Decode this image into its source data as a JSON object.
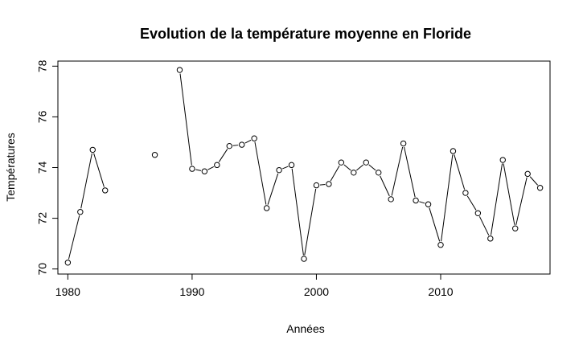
{
  "chart_data": {
    "type": "line",
    "title": "Evolution de la température moyenne en Floride",
    "xlabel": "Années",
    "ylabel": "Températures",
    "xlim": [
      1979.2,
      2018.8
    ],
    "ylim": [
      69.8,
      78.2
    ],
    "xticks": [
      1980,
      1990,
      2000,
      2010
    ],
    "yticks": [
      70,
      72,
      74,
      76,
      78
    ],
    "grid": false,
    "legend": "none",
    "x": [
      1980,
      1981,
      1982,
      1983,
      1984,
      1985,
      1986,
      1987,
      1988,
      1989,
      1990,
      1991,
      1992,
      1993,
      1994,
      1995,
      1996,
      1997,
      1998,
      1999,
      2000,
      2001,
      2002,
      2003,
      2004,
      2005,
      2006,
      2007,
      2008,
      2009,
      2010,
      2011,
      2012,
      2013,
      2014,
      2015,
      2016,
      2017,
      2018
    ],
    "values": [
      70.25,
      72.25,
      74.7,
      73.1,
      null,
      null,
      null,
      74.5,
      null,
      77.85,
      73.95,
      73.85,
      74.1,
      74.85,
      74.9,
      75.15,
      72.4,
      73.9,
      74.1,
      70.4,
      73.3,
      73.35,
      74.2,
      73.8,
      74.2,
      73.8,
      72.75,
      74.95,
      72.7,
      72.55,
      70.95,
      74.65,
      73.0,
      72.2,
      71.2,
      74.3,
      71.6,
      73.75,
      73.2
    ],
    "colors": {
      "line": "#000000",
      "marker_fill": "#ffffff",
      "marker_stroke": "#000000"
    }
  }
}
